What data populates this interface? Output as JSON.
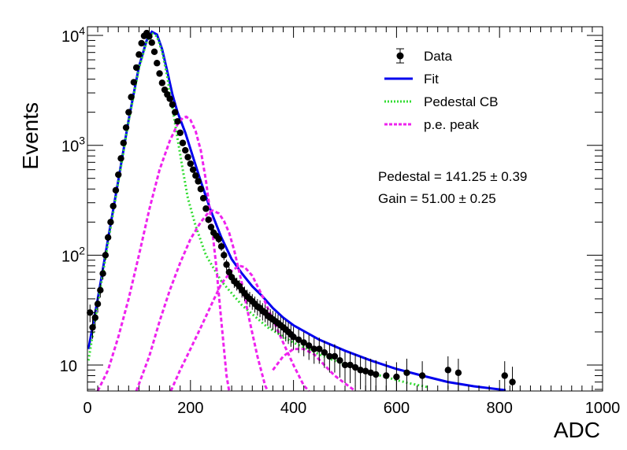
{
  "chart_data": {
    "type": "scatter",
    "xlabel": "ADC",
    "ylabel": "Events",
    "xlim": [
      0,
      1000
    ],
    "ylim": [
      5.8,
      12000
    ],
    "yscale": "log",
    "x_ticks": [
      "0",
      "200",
      "400",
      "600",
      "800",
      "1000"
    ],
    "y_ticks": [
      {
        "value": 10,
        "label": "10",
        "exp": ""
      },
      {
        "value": 100,
        "label": "10",
        "exp": "2"
      },
      {
        "value": 1000,
        "label": "10",
        "exp": "3"
      },
      {
        "value": 10000,
        "label": "10",
        "exp": "4"
      }
    ],
    "legend": {
      "placement": "top-right",
      "entries": [
        {
          "label": "Data",
          "style": "marker",
          "color": "#000000"
        },
        {
          "label": "Fit",
          "style": "line",
          "color": "#0000ee"
        },
        {
          "label": "Pedestal CB",
          "style": "dotted",
          "color": "#33dd33"
        },
        {
          "label": "p.e. peak",
          "style": "dashed",
          "color": "#ee22ee"
        }
      ]
    },
    "annotations": {
      "pedestal": "Pedestal = 141.25 ± 0.39",
      "gain": "Gain = 51.00 ± 0.25"
    },
    "series": [
      {
        "name": "Data",
        "kind": "points",
        "color": "#000000",
        "points": [
          [
            5,
            30
          ],
          [
            10,
            22
          ],
          [
            15,
            27
          ],
          [
            20,
            36
          ],
          [
            25,
            48
          ],
          [
            30,
            68
          ],
          [
            35,
            100
          ],
          [
            40,
            145
          ],
          [
            45,
            200
          ],
          [
            50,
            280
          ],
          [
            55,
            390
          ],
          [
            60,
            540
          ],
          [
            65,
            760
          ],
          [
            70,
            1050
          ],
          [
            75,
            1450
          ],
          [
            80,
            2000
          ],
          [
            85,
            2750
          ],
          [
            90,
            3750
          ],
          [
            95,
            5100
          ],
          [
            100,
            6700
          ],
          [
            105,
            8500
          ],
          [
            110,
            9900
          ],
          [
            115,
            10500
          ],
          [
            120,
            9800
          ],
          [
            125,
            8600
          ],
          [
            130,
            7100
          ],
          [
            135,
            5600
          ],
          [
            140,
            4500
          ],
          [
            145,
            3700
          ],
          [
            150,
            3200
          ],
          [
            155,
            2900
          ],
          [
            160,
            2650
          ],
          [
            165,
            2350
          ],
          [
            170,
            2000
          ],
          [
            175,
            1650
          ],
          [
            180,
            1300
          ],
          [
            185,
            1050
          ],
          [
            190,
            900
          ],
          [
            195,
            780
          ],
          [
            200,
            680
          ],
          [
            205,
            600
          ],
          [
            210,
            530
          ],
          [
            215,
            470
          ],
          [
            220,
            400
          ],
          [
            225,
            330
          ],
          [
            230,
            265
          ],
          [
            235,
            210
          ],
          [
            240,
            180
          ],
          [
            245,
            160
          ],
          [
            250,
            150
          ],
          [
            255,
            140
          ],
          [
            260,
            120
          ],
          [
            265,
            100
          ],
          [
            270,
            82
          ],
          [
            275,
            70
          ],
          [
            280,
            63
          ],
          [
            285,
            58
          ],
          [
            290,
            55
          ],
          [
            295,
            52
          ],
          [
            300,
            48
          ],
          [
            305,
            45
          ],
          [
            310,
            42
          ],
          [
            315,
            40
          ],
          [
            320,
            38
          ],
          [
            325,
            36
          ],
          [
            330,
            34
          ],
          [
            335,
            33
          ],
          [
            340,
            31
          ],
          [
            345,
            30
          ],
          [
            350,
            28
          ],
          [
            355,
            27
          ],
          [
            360,
            26
          ],
          [
            365,
            25
          ],
          [
            370,
            24
          ],
          [
            375,
            23
          ],
          [
            380,
            22
          ],
          [
            385,
            21
          ],
          [
            390,
            20
          ],
          [
            395,
            19
          ],
          [
            400,
            18
          ],
          [
            410,
            17
          ],
          [
            420,
            16
          ],
          [
            430,
            15
          ],
          [
            440,
            14
          ],
          [
            450,
            14
          ],
          [
            460,
            13
          ],
          [
            470,
            12
          ],
          [
            480,
            12
          ],
          [
            490,
            11
          ],
          [
            500,
            10
          ],
          [
            510,
            10
          ],
          [
            520,
            9.5
          ],
          [
            530,
            9
          ],
          [
            540,
            8.8
          ],
          [
            550,
            8.5
          ],
          [
            560,
            8.2
          ],
          [
            580,
            8
          ],
          [
            600,
            7.8
          ],
          [
            620,
            8.5
          ],
          [
            650,
            8
          ],
          [
            700,
            9
          ],
          [
            720,
            8.5
          ],
          [
            810,
            8
          ],
          [
            825,
            7
          ]
        ]
      },
      {
        "name": "Fit",
        "kind": "line",
        "color": "#0000ee",
        "points": [
          [
            2,
            14
          ],
          [
            20,
            40
          ],
          [
            40,
            140
          ],
          [
            60,
            480
          ],
          [
            80,
            1700
          ],
          [
            100,
            5200
          ],
          [
            115,
            9000
          ],
          [
            125,
            10800
          ],
          [
            135,
            10200
          ],
          [
            145,
            7500
          ],
          [
            155,
            4700
          ],
          [
            165,
            2900
          ],
          [
            175,
            2000
          ],
          [
            190,
            1300
          ],
          [
            205,
            780
          ],
          [
            220,
            470
          ],
          [
            240,
            250
          ],
          [
            260,
            145
          ],
          [
            280,
            92
          ],
          [
            300,
            68
          ],
          [
            320,
            52
          ],
          [
            340,
            42
          ],
          [
            360,
            33
          ],
          [
            380,
            27
          ],
          [
            400,
            23
          ],
          [
            450,
            17
          ],
          [
            500,
            13.5
          ],
          [
            550,
            11
          ],
          [
            600,
            9.2
          ],
          [
            650,
            8
          ],
          [
            700,
            7
          ],
          [
            750,
            6.4
          ],
          [
            812,
            5.9
          ]
        ]
      },
      {
        "name": "Pedestal CB",
        "kind": "line",
        "color": "#33dd33",
        "points": [
          [
            2,
            11
          ],
          [
            20,
            36
          ],
          [
            40,
            130
          ],
          [
            60,
            460
          ],
          [
            80,
            1650
          ],
          [
            100,
            5000
          ],
          [
            115,
            8800
          ],
          [
            125,
            10500
          ],
          [
            135,
            9800
          ],
          [
            145,
            7100
          ],
          [
            155,
            4200
          ],
          [
            165,
            2200
          ],
          [
            175,
            1150
          ],
          [
            185,
            600
          ],
          [
            195,
            330
          ],
          [
            210,
            185
          ],
          [
            230,
            100
          ],
          [
            260,
            58
          ],
          [
            300,
            35
          ],
          [
            350,
            22
          ],
          [
            400,
            16
          ],
          [
            450,
            12.5
          ],
          [
            500,
            10
          ],
          [
            560,
            8.2
          ],
          [
            620,
            6.9
          ],
          [
            660,
            6.3
          ]
        ]
      },
      {
        "name": "p.e. peak 1",
        "kind": "line",
        "color": "#ee22ee",
        "points": [
          [
            20,
            5.8
          ],
          [
            40,
            9
          ],
          [
            60,
            18
          ],
          [
            80,
            40
          ],
          [
            100,
            100
          ],
          [
            120,
            260
          ],
          [
            140,
            600
          ],
          [
            160,
            1100
          ],
          [
            175,
            1550
          ],
          [
            185,
            1780
          ],
          [
            192,
            1820
          ],
          [
            200,
            1700
          ],
          [
            210,
            1350
          ],
          [
            220,
            900
          ],
          [
            230,
            480
          ],
          [
            240,
            210
          ],
          [
            250,
            80
          ],
          [
            260,
            25
          ],
          [
            270,
            8
          ],
          [
            275,
            5.8
          ]
        ]
      },
      {
        "name": "p.e. peak 2",
        "kind": "line",
        "color": "#ee22ee",
        "points": [
          [
            95,
            5.8
          ],
          [
            120,
            12
          ],
          [
            140,
            25
          ],
          [
            160,
            48
          ],
          [
            180,
            85
          ],
          [
            200,
            140
          ],
          [
            220,
            200
          ],
          [
            235,
            245
          ],
          [
            243,
            255
          ],
          [
            255,
            240
          ],
          [
            265,
            205
          ],
          [
            275,
            160
          ],
          [
            285,
            110
          ],
          [
            300,
            55
          ],
          [
            315,
            25
          ],
          [
            330,
            12
          ],
          [
            345,
            6.5
          ],
          [
            350,
            5.8
          ]
        ]
      },
      {
        "name": "p.e. peak 3",
        "kind": "line",
        "color": "#ee22ee",
        "points": [
          [
            162,
            5.8
          ],
          [
            180,
            9
          ],
          [
            200,
            14
          ],
          [
            220,
            22
          ],
          [
            240,
            35
          ],
          [
            260,
            55
          ],
          [
            280,
            72
          ],
          [
            295,
            80
          ],
          [
            305,
            78
          ],
          [
            320,
            65
          ],
          [
            340,
            42
          ],
          [
            360,
            26
          ],
          [
            380,
            16
          ],
          [
            400,
            10
          ],
          [
            420,
            6.5
          ],
          [
            430,
            5.8
          ]
        ]
      },
      {
        "name": "p.e. peak 4",
        "kind": "line",
        "color": "#ee22ee",
        "points": [
          [
            360,
            9
          ],
          [
            380,
            12
          ],
          [
            400,
            14
          ],
          [
            420,
            14
          ],
          [
            440,
            12.5
          ],
          [
            460,
            10
          ],
          [
            480,
            8
          ],
          [
            500,
            6.8
          ],
          [
            520,
            5.8
          ]
        ]
      }
    ]
  }
}
